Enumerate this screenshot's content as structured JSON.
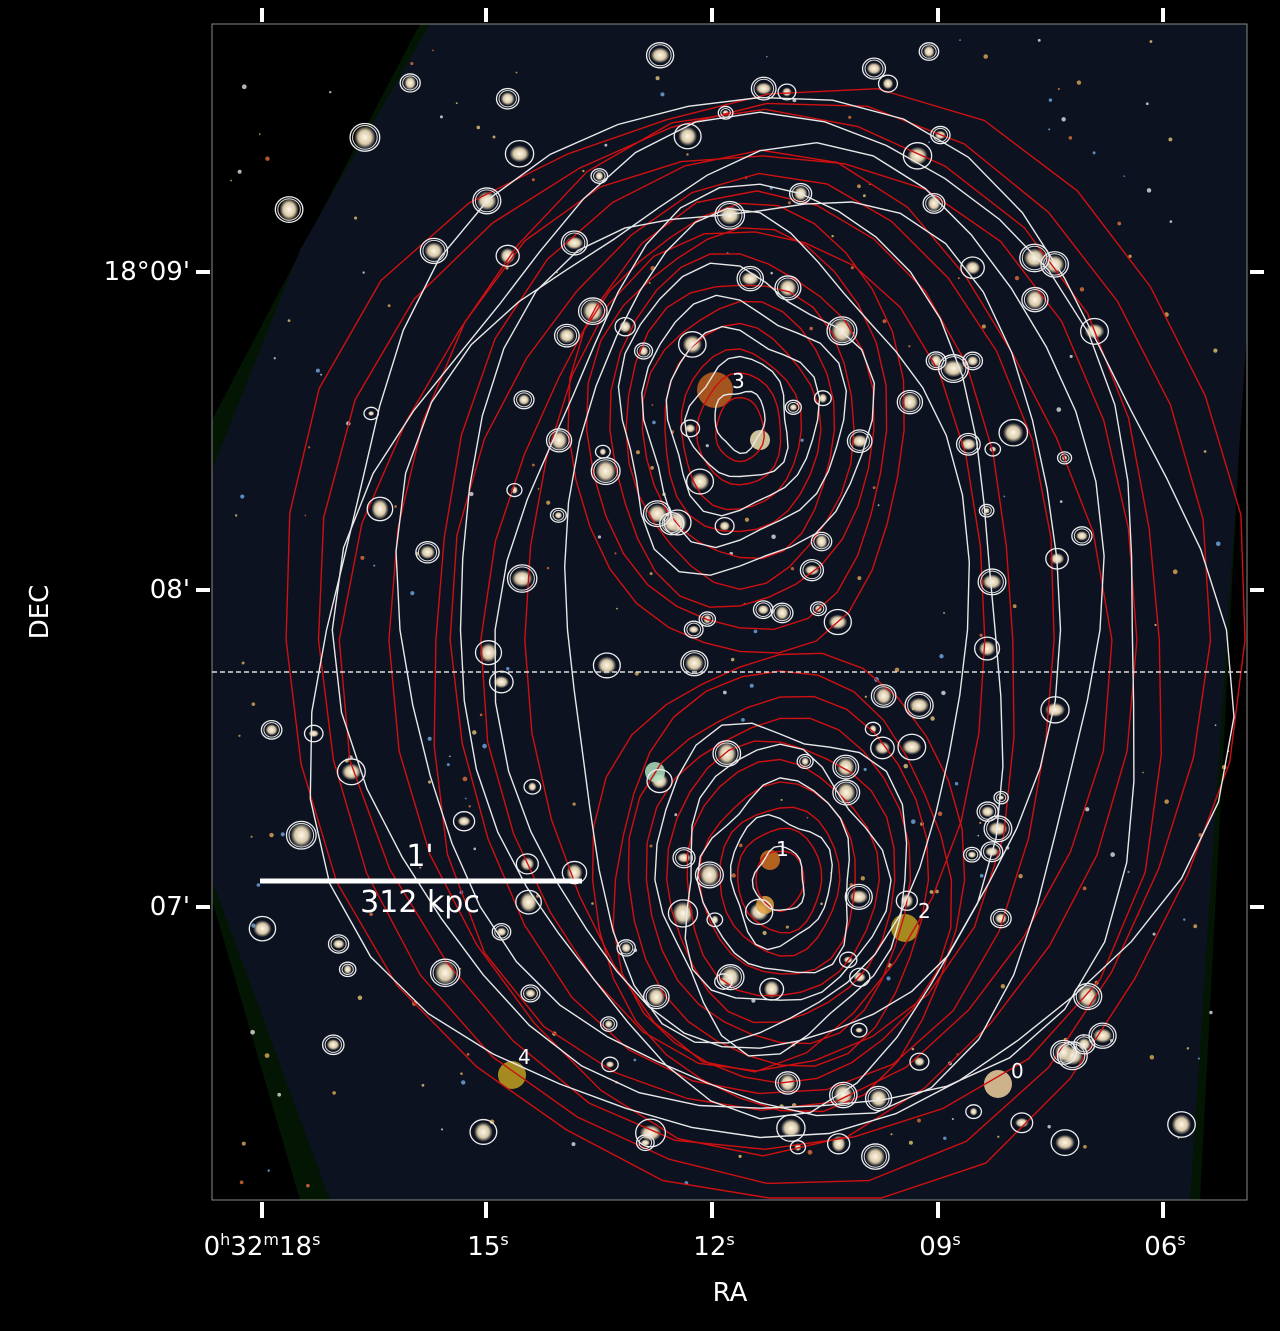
{
  "axes": {
    "xlabel": "RA",
    "ylabel": "DEC",
    "x_ticks": [
      {
        "main": "0",
        "h": "h",
        "m_val": "32",
        "m": "m",
        "s_val": "18",
        "s": "s"
      },
      {
        "s_val": "15",
        "s": "s"
      },
      {
        "s_val": "12",
        "s": "s"
      },
      {
        "s_val": "09",
        "s": "s"
      },
      {
        "s_val": "06",
        "s": "s"
      }
    ],
    "y_ticks": [
      "18°09'",
      "08'",
      "07'"
    ]
  },
  "scale_bar": {
    "angle": "1'",
    "distance": "312 kpc"
  },
  "markers": [
    "0",
    "1",
    "2",
    "3",
    "4"
  ],
  "colors": {
    "background": "#000000",
    "mass_contours": "#d01010",
    "light_contours": "#e8e8e8",
    "frame": "#888888"
  }
}
